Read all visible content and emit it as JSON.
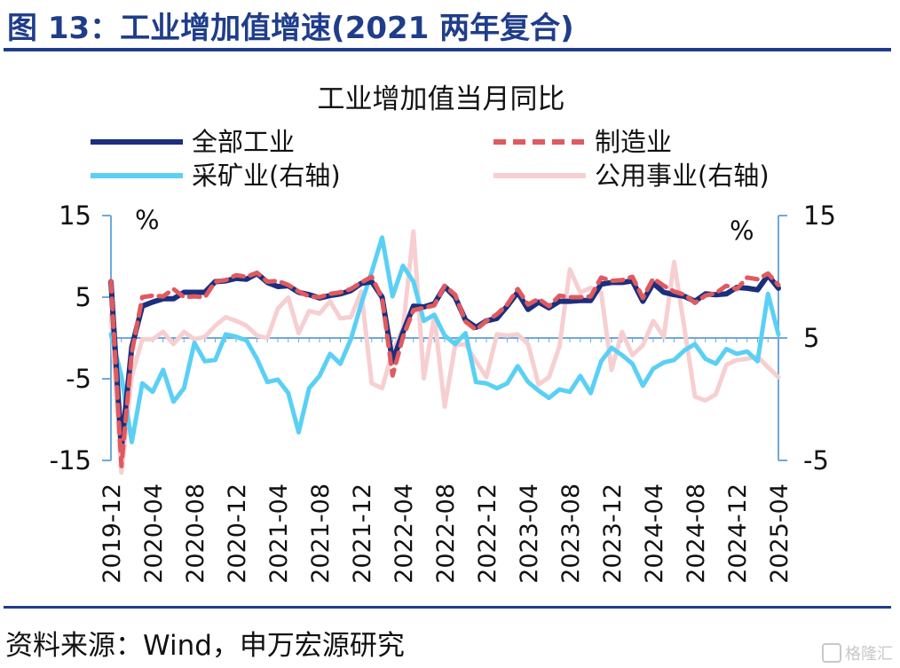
{
  "figure": {
    "title": "图 13：工业增加值增速(2021 两年复合)",
    "source": "资料来源：Wind，申万宏源研究",
    "watermark": "格隆汇"
  },
  "chart_data": {
    "type": "line",
    "title": "工业增加值当月同比",
    "left_axis": {
      "unit": "%",
      "ylim": [
        -15,
        15
      ],
      "ticks": [
        "15",
        "5",
        "-5",
        "-15"
      ]
    },
    "right_axis": {
      "unit": "%",
      "ylim": [
        -5,
        15
      ],
      "ticks": [
        "15",
        "5",
        "-5"
      ]
    },
    "x_tick_labels": [
      "2019-12",
      "2020-04",
      "2020-08",
      "2020-12",
      "2021-04",
      "2021-08",
      "2021-12",
      "2022-04",
      "2022-08",
      "2022-12",
      "2023-04",
      "2023-08",
      "2023-12",
      "2024-04",
      "2024-08",
      "2024-12",
      "2025-04"
    ],
    "x_start": "2019-12",
    "x_end": "2025-04",
    "legend_position": "top",
    "series": [
      {
        "name": "全部工业",
        "axis": "left",
        "color": "#1b2f7e",
        "style": "solid",
        "values": [
          6.9,
          null,
          -1.1,
          3.9,
          4.4,
          4.8,
          4.8,
          5.6,
          5.6,
          5.6,
          6.9,
          7.0,
          7.3,
          7.2,
          7.9,
          6.8,
          6.3,
          6.4,
          5.6,
          5.3,
          4.9,
          5.2,
          5.4,
          5.8,
          6.7,
          6.9,
          5.0,
          -2.9,
          0.7,
          3.9,
          3.8,
          4.2,
          6.3,
          5.0,
          2.2,
          1.3,
          2.1,
          2.4,
          3.9,
          5.6,
          3.5,
          4.4,
          3.7,
          4.5,
          4.5,
          4.6,
          4.6,
          6.6,
          6.8,
          6.8,
          7.0,
          4.5,
          6.7,
          5.6,
          5.3,
          5.1,
          4.5,
          5.4,
          5.3,
          5.4,
          6.2,
          6.1,
          5.9,
          7.7,
          6.1
        ],
        "note_first_values": [
          -13.5
        ]
      },
      {
        "name": "制造业",
        "axis": "left",
        "color": "#e05a5f",
        "style": "dashed",
        "values": [
          7.0,
          null,
          -1.8,
          5.0,
          5.2,
          5.1,
          6.0,
          5.0,
          5.1,
          5.0,
          6.9,
          7.1,
          7.7,
          7.5,
          8.0,
          6.9,
          7.0,
          6.5,
          5.7,
          5.1,
          5.0,
          5.4,
          5.6,
          6.0,
          6.8,
          7.5,
          4.9,
          -4.6,
          0.1,
          3.4,
          3.7,
          4.0,
          6.4,
          5.3,
          2.0,
          1.0,
          2.1,
          2.9,
          4.1,
          6.0,
          4.1,
          4.8,
          3.9,
          5.2,
          5.0,
          5.0,
          5.1,
          7.4,
          7.0,
          7.1,
          7.5,
          4.9,
          7.3,
          6.4,
          5.7,
          5.3,
          4.3,
          5.2,
          5.5,
          6.4,
          6.0,
          7.4,
          7.2,
          7.9,
          6.5
        ],
        "note_first_values": [
          -15.7
        ]
      },
      {
        "name": "采矿业(右轴)",
        "axis": "right",
        "color": "#5ad0f5",
        "style": "solid",
        "values": [
          5.3,
          -1.6,
          -3.7,
          1.3,
          0.6,
          2.4,
          -0.2,
          0.9,
          4.6,
          3.1,
          3.2,
          5.3,
          5.1,
          4.8,
          3.3,
          1.4,
          1.6,
          0.5,
          -2.7,
          0.9,
          1.9,
          3.7,
          2.9,
          4.9,
          7.8,
          10.4,
          13.2,
          8.4,
          10.9,
          9.6,
          6.4,
          6.9,
          5.2,
          4.5,
          5.4,
          1.4,
          1.3,
          0.9,
          1.3,
          2.7,
          1.4,
          0.7,
          0.1,
          0.8,
          0.6,
          1.9,
          0.5,
          3.1,
          4.2,
          3.6,
          2.9,
          1.1,
          2.5,
          3.0,
          3.2,
          4.0,
          4.5,
          3.3,
          2.9,
          4.1,
          3.7,
          3.9,
          3.1,
          8.6,
          5.3
        ],
        "note_first_values": [
          1.9,
          -3.5
        ]
      },
      {
        "name": "公用事业(右轴)",
        "axis": "right",
        "color": "#f7cfd1",
        "style": "solid",
        "values": [
          6.9,
          7.0,
          -2.0,
          4.9,
          4.9,
          5.5,
          4.5,
          5.5,
          4.9,
          5.1,
          6.0,
          6.7,
          6.4,
          6.0,
          5.2,
          5.0,
          7.4,
          8.3,
          5.4,
          7.2,
          7.0,
          8.0,
          6.6,
          6.7,
          8.8,
          1.3,
          0.9,
          3.9,
          5.8,
          13.7,
          1.7,
          6.8,
          -0.6,
          4.4,
          4.5,
          3.1,
          1.8,
          5.3,
          5.2,
          5.3,
          4.5,
          1.2,
          1.8,
          4.3,
          10.6,
          8.7,
          9.1,
          8.7,
          2.4,
          5.5,
          3.6,
          4.4,
          6.4,
          5.1,
          11.2,
          5.7,
          0.2,
          -0.1,
          0.4,
          2.8,
          3.2,
          3.3,
          3.5,
          2.6,
          1.8
        ],
        "note_first_values": [
          -6.0,
          1.9
        ]
      }
    ]
  }
}
